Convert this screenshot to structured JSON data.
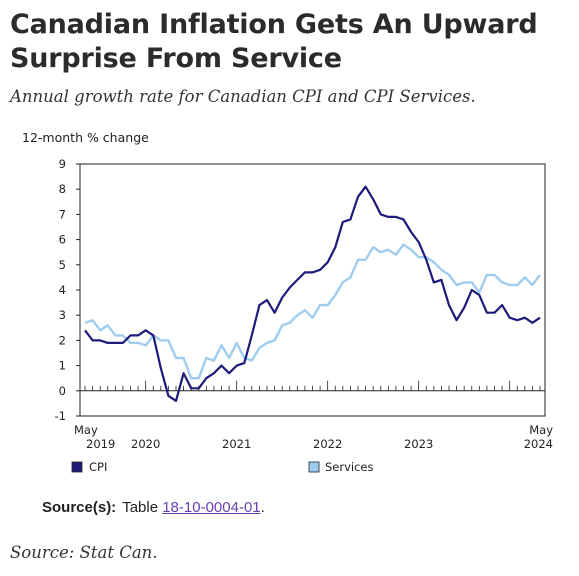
{
  "header": {
    "title": "Canadian Inflation Gets An Upward Surprise From Service",
    "subtitle": "Annual growth rate for Canadian CPI and CPI Services."
  },
  "footer": {
    "source_label": "Source(s):",
    "source_prefix": "Table",
    "source_link": "18-10-0004-01",
    "source_suffix": ".",
    "credit": "Source: Stat Can."
  },
  "chart_data": {
    "type": "line",
    "ylabel": "12-month % change",
    "ylim": [
      -1,
      9
    ],
    "yticks": [
      -1,
      0,
      1,
      2,
      3,
      4,
      5,
      6,
      7,
      8,
      9
    ],
    "x_start": "2019-05",
    "x_end": "2024-05",
    "x_tick_labels": [
      {
        "month": "2019-05",
        "lines": [
          "May",
          "2019"
        ]
      },
      {
        "month": "2020-01",
        "lines": [
          "",
          "2020"
        ]
      },
      {
        "month": "2021-01",
        "lines": [
          "",
          "2021"
        ]
      },
      {
        "month": "2022-01",
        "lines": [
          "",
          "2022"
        ]
      },
      {
        "month": "2023-01",
        "lines": [
          "",
          "2023"
        ]
      },
      {
        "month": "2024-05",
        "lines": [
          "May",
          "2024"
        ]
      }
    ],
    "legend": "bottom",
    "colors": {
      "cpi": "#1d1a7a",
      "services": "#9fcdf0"
    },
    "series": [
      {
        "name": "CPI",
        "key": "cpi",
        "values": [
          2.4,
          2.0,
          2.0,
          1.9,
          1.9,
          1.9,
          2.2,
          2.2,
          2.4,
          2.2,
          0.9,
          -0.2,
          -0.4,
          0.7,
          0.1,
          0.1,
          0.5,
          0.7,
          1.0,
          0.7,
          1.0,
          1.1,
          2.2,
          3.4,
          3.6,
          3.1,
          3.7,
          4.1,
          4.4,
          4.7,
          4.7,
          4.8,
          5.1,
          5.7,
          6.7,
          6.8,
          7.7,
          8.1,
          7.6,
          7.0,
          6.9,
          6.9,
          6.8,
          6.3,
          5.9,
          5.2,
          4.3,
          4.4,
          3.4,
          2.8,
          3.3,
          4.0,
          3.8,
          3.1,
          3.1,
          3.4,
          2.9,
          2.8,
          2.9,
          2.7,
          2.9
        ]
      },
      {
        "name": "Services",
        "key": "services",
        "values": [
          2.7,
          2.8,
          2.4,
          2.6,
          2.2,
          2.2,
          1.9,
          1.9,
          1.8,
          2.2,
          2.0,
          2.0,
          1.3,
          1.3,
          0.5,
          0.5,
          1.3,
          1.2,
          1.8,
          1.3,
          1.9,
          1.3,
          1.2,
          1.7,
          1.9,
          2.0,
          2.6,
          2.7,
          3.0,
          3.2,
          2.9,
          3.4,
          3.4,
          3.8,
          4.3,
          4.5,
          5.2,
          5.2,
          5.7,
          5.5,
          5.6,
          5.4,
          5.8,
          5.6,
          5.3,
          5.3,
          5.1,
          4.8,
          4.6,
          4.2,
          4.3,
          4.3,
          3.9,
          4.6,
          4.6,
          4.3,
          4.2,
          4.2,
          4.5,
          4.2,
          4.6
        ]
      }
    ]
  }
}
